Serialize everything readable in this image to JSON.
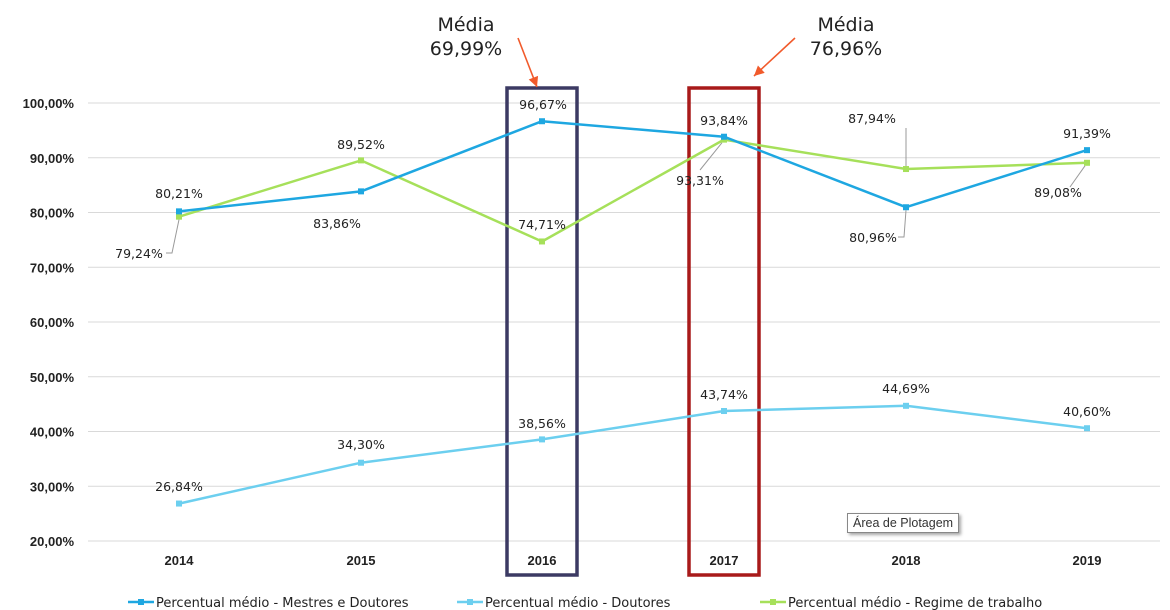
{
  "chart_data": {
    "type": "line",
    "categories": [
      "2014",
      "2015",
      "2016",
      "2017",
      "2018",
      "2019"
    ],
    "ylim": [
      20,
      100
    ],
    "yticks": [
      "20,00%",
      "30,00%",
      "40,00%",
      "50,00%",
      "60,00%",
      "70,00%",
      "80,00%",
      "90,00%",
      "100,00%"
    ],
    "grid": true,
    "legend_position": "bottom",
    "series": [
      {
        "name": "Percentual médio - Mestres e Doutores",
        "color": "#1ea7e1",
        "values": [
          80.21,
          83.86,
          96.67,
          93.84,
          80.96,
          91.39
        ],
        "labels": [
          "80,21%",
          "83,86%",
          "96,67%",
          "93,84%",
          "80,96%",
          "91,39%"
        ]
      },
      {
        "name": "Percentual médio  - Doutores",
        "color": "#6ccfef",
        "values": [
          26.84,
          34.3,
          38.56,
          43.74,
          44.69,
          40.6
        ],
        "labels": [
          "26,84%",
          "34,30%",
          "38,56%",
          "43,74%",
          "44,69%",
          "40,60%"
        ]
      },
      {
        "name": "Percentual médio - Regime de trabalho",
        "color": "#a6e05a",
        "values": [
          79.24,
          89.52,
          74.71,
          93.31,
          87.94,
          89.08
        ],
        "labels": [
          "79,24%",
          "89,52%",
          "74,71%",
          "93,31%",
          "87,94%",
          "89,08%"
        ]
      }
    ],
    "annotations": [
      {
        "title": "Média",
        "value": "69,99%",
        "category": "2016",
        "box_color": "#3c3a63",
        "arrow_color": "#f15a2b"
      },
      {
        "title": "Média",
        "value": "76,96%",
        "category": "2017",
        "box_color": "#a81a1a",
        "arrow_color": "#f15a2b"
      }
    ],
    "tooltip": "Área de Plotagem"
  }
}
